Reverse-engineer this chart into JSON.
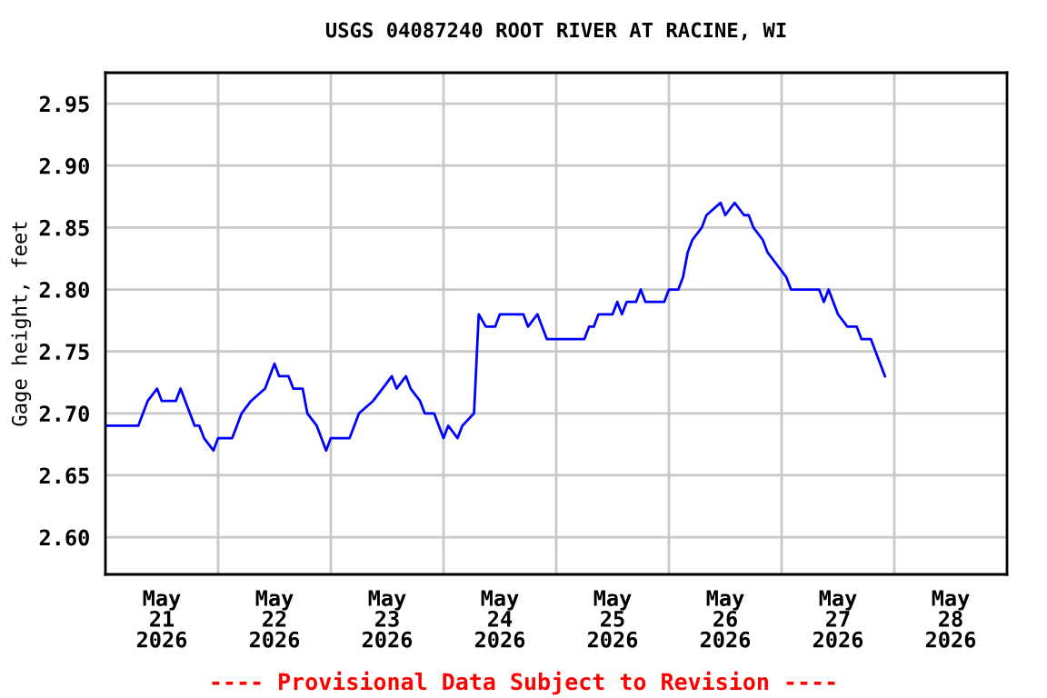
{
  "chart_data": {
    "type": "line",
    "title": "USGS 04087240 ROOT RIVER AT RACINE, WI",
    "ylabel": "Gage height, feet",
    "annotations": [
      "---- Provisional Data Subject to Revision ----"
    ],
    "xlim": [
      "2026-05-21T00:00",
      "2026-05-29T00:00"
    ],
    "xticks": [
      {
        "value": "2026-05-21T12:00",
        "label": "May\n21\n2026"
      },
      {
        "value": "2026-05-22T12:00",
        "label": "May\n22\n2026"
      },
      {
        "value": "2026-05-23T12:00",
        "label": "May\n23\n2026"
      },
      {
        "value": "2026-05-24T12:00",
        "label": "May\n24\n2026"
      },
      {
        "value": "2026-05-25T12:00",
        "label": "May\n25\n2026"
      },
      {
        "value": "2026-05-26T12:00",
        "label": "May\n26\n2026"
      },
      {
        "value": "2026-05-27T12:00",
        "label": "May\n27\n2026"
      },
      {
        "value": "2026-05-28T12:00",
        "label": "May\n28\n2026"
      },
      {
        "value": "2026-05-22T00:00",
        "label": null
      },
      {
        "value": "2026-05-23T00:00",
        "label": null
      },
      {
        "value": "2026-05-24T00:00",
        "label": null
      },
      {
        "value": "2026-05-25T00:00",
        "label": null
      },
      {
        "value": "2026-05-26T00:00",
        "label": null
      },
      {
        "value": "2026-05-27T00:00",
        "label": null
      },
      {
        "value": "2026-05-28T00:00",
        "label": null
      }
    ],
    "ylim": [
      2.57,
      2.975
    ],
    "yticks": [
      {
        "value": 2.6,
        "label": "2.60"
      },
      2.65,
      {
        "value": 2.7,
        "label": "2.70"
      },
      2.75,
      {
        "value": 2.8,
        "label": "2.80"
      },
      2.85,
      {
        "value": 2.9,
        "label": "2.90"
      },
      2.95
    ],
    "grid": true,
    "legend": false,
    "line_style": "solid",
    "marker": "none",
    "series": [
      {
        "color": "#0000ff",
        "x": [
          "2026-05-21T00:00",
          "2026-05-21T07:00",
          "2026-05-21T08:00",
          "2026-05-21T09:00",
          "2026-05-21T11:00",
          "2026-05-21T12:00",
          "2026-05-21T15:00",
          "2026-05-21T16:00",
          "2026-05-21T17:00",
          "2026-05-21T18:00",
          "2026-05-21T19:00",
          "2026-05-21T20:00",
          "2026-05-21T21:00",
          "2026-05-21T23:00",
          "2026-05-22T00:00",
          "2026-05-22T03:00",
          "2026-05-22T04:00",
          "2026-05-22T05:00",
          "2026-05-22T07:00",
          "2026-05-22T10:00",
          "2026-05-22T12:00",
          "2026-05-22T13:00",
          "2026-05-22T15:00",
          "2026-05-22T16:00",
          "2026-05-22T18:00",
          "2026-05-22T19:00",
          "2026-05-22T21:00",
          "2026-05-22T22:00",
          "2026-05-22T23:00",
          "2026-05-23T00:00",
          "2026-05-23T04:00",
          "2026-05-23T05:00",
          "2026-05-23T06:00",
          "2026-05-23T09:00",
          "2026-05-23T11:00",
          "2026-05-23T13:00",
          "2026-05-23T14:00",
          "2026-05-23T16:00",
          "2026-05-23T17:00",
          "2026-05-23T19:00",
          "2026-05-23T20:00",
          "2026-05-23T22:00",
          "2026-05-23T23:00",
          "2026-05-24T00:00",
          "2026-05-24T01:00",
          "2026-05-24T03:00",
          "2026-05-24T04:00",
          "2026-05-24T06:30",
          "2026-05-24T07:00",
          "2026-05-24T07:30",
          "2026-05-24T09:00",
          "2026-05-24T11:00",
          "2026-05-24T12:00",
          "2026-05-24T17:00",
          "2026-05-24T18:00",
          "2026-05-24T20:00",
          "2026-05-24T21:00",
          "2026-05-24T22:00",
          "2026-05-25T06:00",
          "2026-05-25T07:00",
          "2026-05-25T08:00",
          "2026-05-25T09:00",
          "2026-05-25T12:00",
          "2026-05-25T13:00",
          "2026-05-25T14:00",
          "2026-05-25T15:00",
          "2026-05-25T17:00",
          "2026-05-25T18:00",
          "2026-05-25T19:00",
          "2026-05-25T23:00",
          "2026-05-26T00:00",
          "2026-05-26T02:00",
          "2026-05-26T03:00",
          "2026-05-26T04:00",
          "2026-05-26T05:00",
          "2026-05-26T07:00",
          "2026-05-26T08:00",
          "2026-05-26T11:00",
          "2026-05-26T12:00",
          "2026-05-26T14:00",
          "2026-05-26T16:00",
          "2026-05-26T17:00",
          "2026-05-26T18:00",
          "2026-05-26T20:00",
          "2026-05-26T21:00",
          "2026-05-26T23:00",
          "2026-05-27T01:00",
          "2026-05-27T02:00",
          "2026-05-27T08:00",
          "2026-05-27T09:00",
          "2026-05-27T10:00",
          "2026-05-27T11:00",
          "2026-05-27T12:00",
          "2026-05-27T14:00",
          "2026-05-27T16:00",
          "2026-05-27T17:00",
          "2026-05-27T19:00",
          "2026-05-27T20:00",
          "2026-05-27T21:00",
          "2026-05-27T22:00"
        ],
        "values": [
          2.69,
          2.69,
          2.7,
          2.71,
          2.72,
          2.71,
          2.71,
          2.72,
          2.71,
          2.7,
          2.69,
          2.69,
          2.68,
          2.67,
          2.68,
          2.68,
          2.69,
          2.7,
          2.71,
          2.72,
          2.74,
          2.73,
          2.73,
          2.72,
          2.72,
          2.7,
          2.69,
          2.68,
          2.67,
          2.68,
          2.68,
          2.69,
          2.7,
          2.71,
          2.72,
          2.73,
          2.72,
          2.73,
          2.72,
          2.71,
          2.7,
          2.7,
          2.69,
          2.68,
          2.69,
          2.68,
          2.69,
          2.7,
          2.74,
          2.78,
          2.77,
          2.77,
          2.78,
          2.78,
          2.77,
          2.78,
          2.77,
          2.76,
          2.76,
          2.77,
          2.77,
          2.78,
          2.78,
          2.79,
          2.78,
          2.79,
          2.79,
          2.8,
          2.79,
          2.79,
          2.8,
          2.8,
          2.81,
          2.83,
          2.84,
          2.85,
          2.86,
          2.87,
          2.86,
          2.87,
          2.86,
          2.86,
          2.85,
          2.84,
          2.83,
          2.82,
          2.81,
          2.8,
          2.8,
          2.79,
          2.8,
          2.79,
          2.78,
          2.77,
          2.77,
          2.76,
          2.76,
          2.75,
          2.74,
          2.73
        ]
      }
    ]
  }
}
